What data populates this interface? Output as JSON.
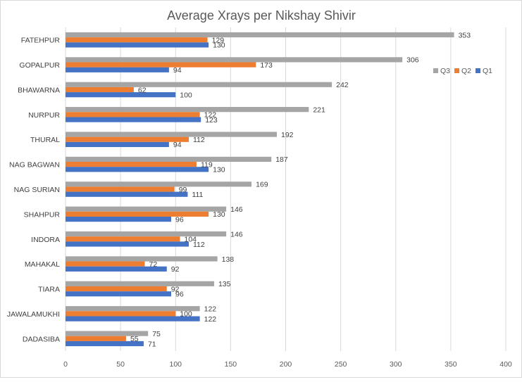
{
  "chart_data": {
    "type": "bar",
    "orientation": "horizontal",
    "title": "Average Xrays per Nikshay Shivir",
    "xlabel": "",
    "ylabel": "",
    "xlim": [
      0,
      400
    ],
    "x_ticks": [
      "0",
      "50",
      "100",
      "150",
      "200",
      "250",
      "300",
      "350",
      "400"
    ],
    "grid": "vertical",
    "legend_position": "right",
    "categories": [
      "FATEHPUR",
      "GOPALPUR",
      "BHAWARNA",
      "NURPUR",
      "THURAL",
      "NAG BAGWAN",
      "NAG SURIAN",
      "SHAHPUR",
      "INDORA",
      "MAHAKAL",
      "TIARA",
      "JAWALAMUKHI",
      "DADASIBA"
    ],
    "series": [
      {
        "name": "Q3",
        "color": "#a5a5a5",
        "values": [
          353,
          306,
          242,
          221,
          192,
          187,
          169,
          146,
          146,
          138,
          135,
          122,
          75
        ]
      },
      {
        "name": "Q2",
        "color": "#ed7d31",
        "values": [
          129,
          173,
          62,
          122,
          112,
          119,
          99,
          130,
          104,
          72,
          92,
          100,
          55
        ]
      },
      {
        "name": "Q1",
        "color": "#4472c4",
        "values": [
          130,
          94,
          100,
          123,
          94,
          130,
          111,
          96,
          112,
          92,
          96,
          122,
          71
        ]
      }
    ]
  }
}
